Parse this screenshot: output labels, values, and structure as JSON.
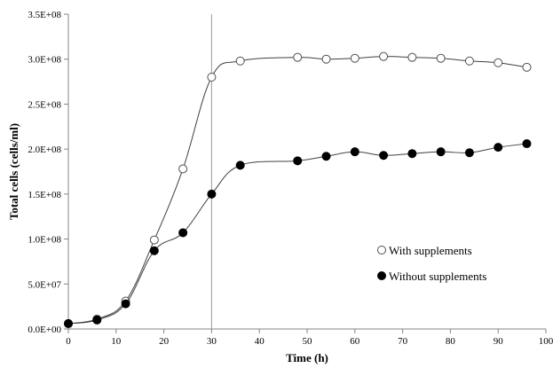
{
  "chart_data": {
    "type": "scatter",
    "xlabel": "Time (h)",
    "ylabel": "Total cells (cells/ml)",
    "xlim": [
      0,
      100
    ],
    "ylim": [
      0,
      350000000
    ],
    "x_ticks": [
      0,
      10,
      20,
      30,
      40,
      50,
      60,
      70,
      80,
      90,
      100
    ],
    "x_tick_labels": [
      "0",
      "10",
      "20",
      "30",
      "40",
      "50",
      "60",
      "70",
      "80",
      "90",
      "100"
    ],
    "y_ticks": [
      0,
      50000000,
      100000000,
      150000000,
      200000000,
      250000000,
      300000000,
      350000000
    ],
    "y_tick_labels": [
      "0.0E+00",
      "5.0E+07",
      "1.0E+08",
      "1.5E+08",
      "2.0E+08",
      "2.5E+08",
      "3.0E+08",
      "3.5E+08"
    ],
    "grid": false,
    "legend_position": "bottom-right",
    "reference_line_x": 30,
    "series": [
      {
        "name": "With supplements",
        "marker": "open-circle",
        "color": "#404040",
        "x": [
          0,
          6,
          12,
          18,
          24,
          30,
          36,
          48,
          54,
          60,
          66,
          72,
          78,
          84,
          90,
          96
        ],
        "values": [
          6000000,
          11000000,
          31000000,
          99000000,
          178000000,
          280000000,
          298000000,
          302000000,
          300000000,
          301000000,
          303000000,
          302000000,
          301000000,
          298000000,
          296000000,
          291000000
        ]
      },
      {
        "name": "Without supplements",
        "marker": "filled-circle",
        "color": "#000000",
        "x": [
          0,
          6,
          12,
          18,
          24,
          30,
          36,
          48,
          54,
          60,
          66,
          72,
          78,
          84,
          90,
          96
        ],
        "values": [
          6000000,
          10000000,
          28000000,
          87000000,
          107000000,
          150000000,
          182000000,
          187000000,
          192000000,
          197000000,
          193000000,
          195000000,
          197000000,
          196000000,
          202000000,
          206000000
        ]
      }
    ]
  }
}
